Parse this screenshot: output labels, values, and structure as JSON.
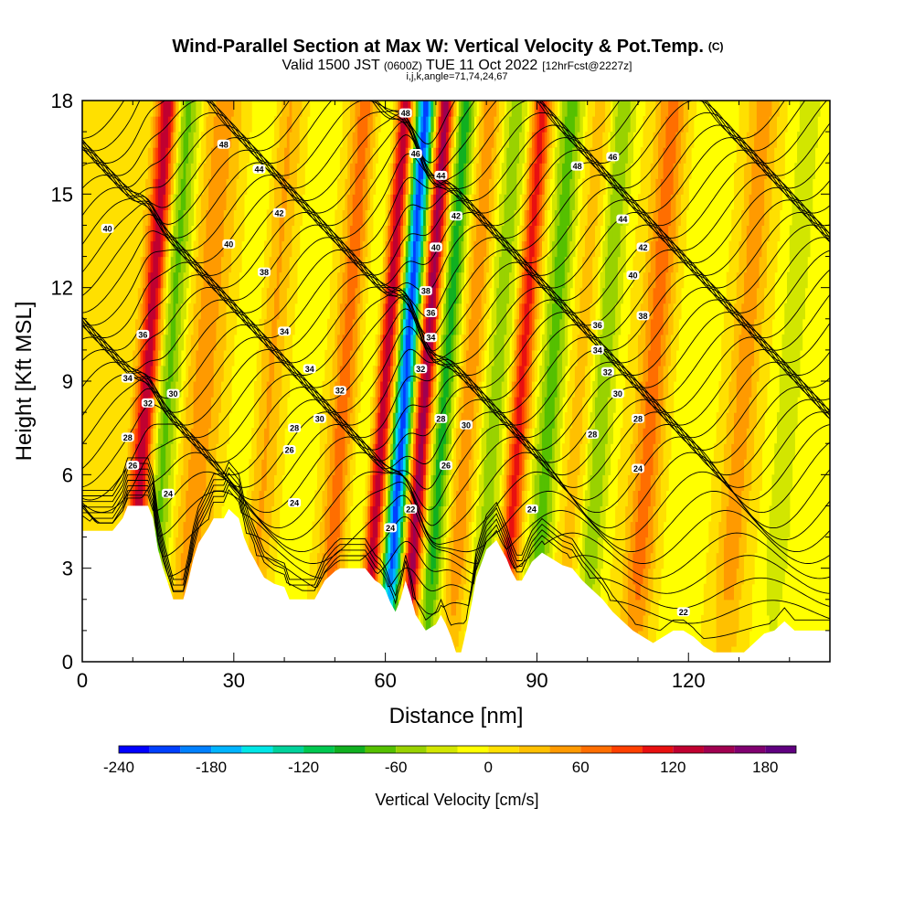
{
  "chart_data": {
    "type": "heatmap",
    "title": "Wind-Parallel Section at Max W: Vertical Velocity & Pot.Temp.",
    "title_mark": "(C)",
    "subtitle": {
      "valid": "Valid 1500 JST",
      "utc": "(0600Z)",
      "date": "TUE 11 Oct 2022",
      "forecast": "[12hrFcst@2227z]"
    },
    "subtitle2": "i,j,k,angle=71,74,24,67",
    "xlabel": "Distance [nm]",
    "ylabel": "Height [Kft MSL]",
    "xlim": [
      0,
      148
    ],
    "ylim": [
      0,
      18
    ],
    "x_ticks": [
      "0",
      "30",
      "60",
      "90",
      "120"
    ],
    "y_ticks": [
      "0",
      "3",
      "6",
      "9",
      "12",
      "15",
      "18"
    ],
    "colorbar": {
      "label": "Vertical Velocity [cm/s]",
      "ticks": [
        "-240",
        "-180",
        "-120",
        "-60",
        "0",
        "60",
        "120",
        "180"
      ],
      "range": [
        -240,
        200
      ],
      "colors": [
        "#0000ff",
        "#0040ff",
        "#0080ff",
        "#00b4ff",
        "#00e6e6",
        "#00d29b",
        "#00c850",
        "#10b020",
        "#55c000",
        "#99d200",
        "#d2e600",
        "#ffff00",
        "#ffe000",
        "#ffc000",
        "#ff9a00",
        "#ff6e00",
        "#ff4000",
        "#e81010",
        "#c00030",
        "#a00050",
        "#800070",
        "#600080"
      ]
    },
    "vertical_velocity_features": [
      {
        "x": 5,
        "w_cm_s": 20,
        "width_nm": 3
      },
      {
        "x": 13,
        "w_cm_s": 140,
        "width_nm": 2.2
      },
      {
        "x": 17,
        "w_cm_s": -70,
        "width_nm": 2.8
      },
      {
        "x": 24,
        "w_cm_s": 50,
        "width_nm": 4
      },
      {
        "x": 33,
        "w_cm_s": -25,
        "width_nm": 3
      },
      {
        "x": 37,
        "w_cm_s": 45,
        "width_nm": 3
      },
      {
        "x": 44,
        "w_cm_s": -20,
        "width_nm": 3
      },
      {
        "x": 52,
        "w_cm_s": 70,
        "width_nm": 2.5
      },
      {
        "x": 57,
        "w_cm_s": -25,
        "width_nm": 2.5
      },
      {
        "x": 60,
        "w_cm_s": 140,
        "width_nm": 1.8
      },
      {
        "x": 64,
        "w_cm_s": -210,
        "width_nm": 1.8
      },
      {
        "x": 68,
        "w_cm_s": 150,
        "width_nm": 1.8
      },
      {
        "x": 72,
        "w_cm_s": -90,
        "width_nm": 2
      },
      {
        "x": 77,
        "w_cm_s": 55,
        "width_nm": 2.5
      },
      {
        "x": 82,
        "w_cm_s": -50,
        "width_nm": 3
      },
      {
        "x": 87,
        "w_cm_s": 110,
        "width_nm": 2
      },
      {
        "x": 93,
        "w_cm_s": -70,
        "width_nm": 2.5
      },
      {
        "x": 99,
        "w_cm_s": 30,
        "width_nm": 3
      },
      {
        "x": 103,
        "w_cm_s": -60,
        "width_nm": 2.5
      },
      {
        "x": 113,
        "w_cm_s": 70,
        "width_nm": 3
      },
      {
        "x": 121,
        "w_cm_s": -20,
        "width_nm": 4
      },
      {
        "x": 131,
        "w_cm_s": 50,
        "width_nm": 3
      },
      {
        "x": 140,
        "w_cm_s": -30,
        "width_nm": 3
      }
    ],
    "terrain_kft": [
      {
        "x": 0,
        "h": 4.2
      },
      {
        "x": 6,
        "h": 4.2
      },
      {
        "x": 8,
        "h": 4.6
      },
      {
        "x": 9,
        "h": 5.0
      },
      {
        "x": 13,
        "h": 5.0
      },
      {
        "x": 14,
        "h": 4.6
      },
      {
        "x": 15,
        "h": 3.6
      },
      {
        "x": 16,
        "h": 3.0
      },
      {
        "x": 17,
        "h": 2.5
      },
      {
        "x": 18,
        "h": 2.0
      },
      {
        "x": 20,
        "h": 2.0
      },
      {
        "x": 21,
        "h": 2.6
      },
      {
        "x": 22,
        "h": 3.3
      },
      {
        "x": 23,
        "h": 3.8
      },
      {
        "x": 25,
        "h": 4.3
      },
      {
        "x": 26,
        "h": 4.6
      },
      {
        "x": 28,
        "h": 4.6
      },
      {
        "x": 29,
        "h": 4.9
      },
      {
        "x": 31,
        "h": 4.6
      },
      {
        "x": 32,
        "h": 4.0
      },
      {
        "x": 33,
        "h": 3.6
      },
      {
        "x": 34,
        "h": 3.3
      },
      {
        "x": 35,
        "h": 3.0
      },
      {
        "x": 36,
        "h": 2.7
      },
      {
        "x": 38,
        "h": 2.5
      },
      {
        "x": 40,
        "h": 2.4
      },
      {
        "x": 41,
        "h": 2.0
      },
      {
        "x": 46,
        "h": 2.0
      },
      {
        "x": 47,
        "h": 2.3
      },
      {
        "x": 48,
        "h": 2.6
      },
      {
        "x": 50,
        "h": 2.9
      },
      {
        "x": 51,
        "h": 3.0
      },
      {
        "x": 56,
        "h": 3.0
      },
      {
        "x": 57,
        "h": 2.8
      },
      {
        "x": 58,
        "h": 2.6
      },
      {
        "x": 59,
        "h": 2.5
      },
      {
        "x": 60,
        "h": 2.3
      },
      {
        "x": 61,
        "h": 1.9
      },
      {
        "x": 62,
        "h": 1.6
      },
      {
        "x": 63,
        "h": 2.0
      },
      {
        "x": 64,
        "h": 2.6
      },
      {
        "x": 65,
        "h": 2.1
      },
      {
        "x": 66,
        "h": 1.5
      },
      {
        "x": 68,
        "h": 1.0
      },
      {
        "x": 70,
        "h": 1.2
      },
      {
        "x": 71,
        "h": 1.5
      },
      {
        "x": 72,
        "h": 1.2
      },
      {
        "x": 73,
        "h": 0.8
      },
      {
        "x": 74,
        "h": 0.3
      },
      {
        "x": 75,
        "h": 0.3
      },
      {
        "x": 76,
        "h": 1.0
      },
      {
        "x": 77,
        "h": 1.8
      },
      {
        "x": 78,
        "h": 2.7
      },
      {
        "x": 80,
        "h": 3.6
      },
      {
        "x": 82,
        "h": 3.9
      },
      {
        "x": 83,
        "h": 3.6
      },
      {
        "x": 84,
        "h": 3.3
      },
      {
        "x": 85,
        "h": 2.9
      },
      {
        "x": 86,
        "h": 2.6
      },
      {
        "x": 87,
        "h": 2.6
      },
      {
        "x": 88,
        "h": 2.9
      },
      {
        "x": 89,
        "h": 3.2
      },
      {
        "x": 91,
        "h": 3.5
      },
      {
        "x": 93,
        "h": 3.3
      },
      {
        "x": 95,
        "h": 3.1
      },
      {
        "x": 97,
        "h": 3.0
      },
      {
        "x": 99,
        "h": 2.6
      },
      {
        "x": 101,
        "h": 2.3
      },
      {
        "x": 103,
        "h": 2.0
      },
      {
        "x": 105,
        "h": 1.6
      },
      {
        "x": 107,
        "h": 1.3
      },
      {
        "x": 109,
        "h": 1.0
      },
      {
        "x": 111,
        "h": 0.8
      },
      {
        "x": 113,
        "h": 0.6
      },
      {
        "x": 115,
        "h": 0.8
      },
      {
        "x": 117,
        "h": 1.0
      },
      {
        "x": 119,
        "h": 1.0
      },
      {
        "x": 121,
        "h": 0.8
      },
      {
        "x": 123,
        "h": 0.5
      },
      {
        "x": 125,
        "h": 0.3
      },
      {
        "x": 131,
        "h": 0.3
      },
      {
        "x": 133,
        "h": 0.6
      },
      {
        "x": 135,
        "h": 0.9
      },
      {
        "x": 137,
        "h": 1.0
      },
      {
        "x": 139,
        "h": 1.3
      },
      {
        "x": 141,
        "h": 1.0
      },
      {
        "x": 144,
        "h": 1.0
      },
      {
        "x": 148,
        "h": 1.0
      }
    ],
    "theta_contours": {
      "units": "degC-labelled potential temperature (as printed)",
      "base_heights_kft": [
        1.0,
        1.6,
        2.2,
        2.8,
        3.4,
        4.0,
        4.5,
        5.0,
        5.5,
        6.0,
        6.4,
        6.8,
        7.2,
        7.6,
        8.0,
        8.4,
        8.8,
        9.2,
        9.6,
        10.0,
        10.4,
        10.8,
        11.2,
        11.6,
        12.0,
        12.4,
        12.8,
        13.2,
        13.6,
        14.0,
        14.4,
        14.8,
        15.2,
        15.6,
        16.0,
        16.4,
        16.8,
        17.2,
        17.6,
        18.0
      ]
    },
    "contour_labels": [
      {
        "text": "48",
        "x": 28,
        "y": 16.6
      },
      {
        "text": "44",
        "x": 35,
        "y": 15.8
      },
      {
        "text": "40",
        "x": 5,
        "y": 13.9
      },
      {
        "text": "42",
        "x": 39,
        "y": 14.4
      },
      {
        "text": "40",
        "x": 29,
        "y": 13.4
      },
      {
        "text": "38",
        "x": 36,
        "y": 12.5
      },
      {
        "text": "36",
        "x": 12,
        "y": 10.5
      },
      {
        "text": "34",
        "x": 40,
        "y": 10.6
      },
      {
        "text": "34",
        "x": 9,
        "y": 9.1
      },
      {
        "text": "34",
        "x": 45,
        "y": 9.4
      },
      {
        "text": "32",
        "x": 13,
        "y": 8.3
      },
      {
        "text": "30",
        "x": 18,
        "y": 8.6
      },
      {
        "text": "32",
        "x": 51,
        "y": 8.7
      },
      {
        "text": "30",
        "x": 47,
        "y": 7.8
      },
      {
        "text": "28",
        "x": 42,
        "y": 7.5
      },
      {
        "text": "26",
        "x": 41,
        "y": 6.8
      },
      {
        "text": "28",
        "x": 9,
        "y": 7.2
      },
      {
        "text": "26",
        "x": 10,
        "y": 6.3
      },
      {
        "text": "24",
        "x": 17,
        "y": 5.4
      },
      {
        "text": "24",
        "x": 42,
        "y": 5.1
      },
      {
        "text": "24",
        "x": 61,
        "y": 4.3
      },
      {
        "text": "22",
        "x": 65,
        "y": 4.9
      },
      {
        "text": "48",
        "x": 64,
        "y": 17.6
      },
      {
        "text": "46",
        "x": 66,
        "y": 16.3
      },
      {
        "text": "44",
        "x": 71,
        "y": 15.6
      },
      {
        "text": "42",
        "x": 74,
        "y": 14.3
      },
      {
        "text": "40",
        "x": 70,
        "y": 13.3
      },
      {
        "text": "38",
        "x": 68,
        "y": 11.9
      },
      {
        "text": "36",
        "x": 69,
        "y": 11.2
      },
      {
        "text": "34",
        "x": 69,
        "y": 10.4
      },
      {
        "text": "32",
        "x": 67,
        "y": 9.4
      },
      {
        "text": "28",
        "x": 71,
        "y": 7.8
      },
      {
        "text": "30",
        "x": 76,
        "y": 7.6
      },
      {
        "text": "26",
        "x": 72,
        "y": 6.3
      },
      {
        "text": "24",
        "x": 89,
        "y": 4.9
      },
      {
        "text": "48",
        "x": 98,
        "y": 15.9
      },
      {
        "text": "46",
        "x": 105,
        "y": 16.2
      },
      {
        "text": "44",
        "x": 107,
        "y": 14.2
      },
      {
        "text": "42",
        "x": 111,
        "y": 13.3
      },
      {
        "text": "40",
        "x": 109,
        "y": 12.4
      },
      {
        "text": "38",
        "x": 111,
        "y": 11.1
      },
      {
        "text": "36",
        "x": 102,
        "y": 10.8
      },
      {
        "text": "34",
        "x": 102,
        "y": 10.0
      },
      {
        "text": "32",
        "x": 104,
        "y": 9.3
      },
      {
        "text": "30",
        "x": 106,
        "y": 8.6
      },
      {
        "text": "28",
        "x": 110,
        "y": 7.8
      },
      {
        "text": "28",
        "x": 101,
        "y": 7.3
      },
      {
        "text": "24",
        "x": 110,
        "y": 6.2
      },
      {
        "text": "22",
        "x": 119,
        "y": 1.6
      }
    ]
  }
}
